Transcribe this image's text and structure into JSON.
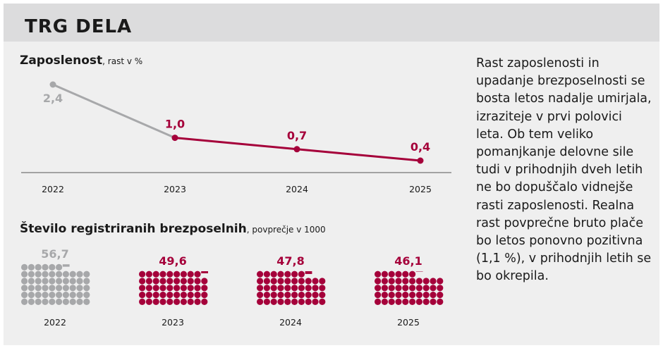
{
  "header": {
    "title": "TRG DELA"
  },
  "colors": {
    "accent": "#a5003a",
    "muted": "#a7a8aa"
  },
  "chart_data": [
    {
      "type": "line",
      "title": "Zaposlenost",
      "subtitle": ", rast v %",
      "categories": [
        "2022",
        "2023",
        "2024",
        "2025"
      ],
      "values": [
        2.4,
        1.0,
        0.7,
        0.4
      ],
      "labels": [
        "2,4",
        "1,0",
        "0,7",
        "0,4"
      ],
      "series_colors": [
        "muted",
        "accent",
        "accent",
        "accent"
      ],
      "grid": false
    },
    {
      "type": "pictogram",
      "title": "Število registriranih brezposelnih",
      "subtitle": ", povprečje v 1000",
      "categories": [
        "2022",
        "2023",
        "2024",
        "2025"
      ],
      "values": [
        56.7,
        49.6,
        47.8,
        46.1
      ],
      "labels": [
        "56,7",
        "49,6",
        "47,8",
        "46,1"
      ],
      "unit_per_dot": 1,
      "dots_per_row": 10
    }
  ],
  "commentary": "Rast zaposlenosti in upadanje brezposelnosti se bosta letos nadalje umirjala, izraziteje v prvi polovici leta. Ob tem veliko pomanjkanje delovne sile tudi v prihodnjih dveh letih ne bo dopuščalo vidnejše rasti zaposlenosti. Realna rast povprečne bruto plače bo letos ponovno pozitivna (1,1 %), v prihodnjih letih se bo okrepila."
}
